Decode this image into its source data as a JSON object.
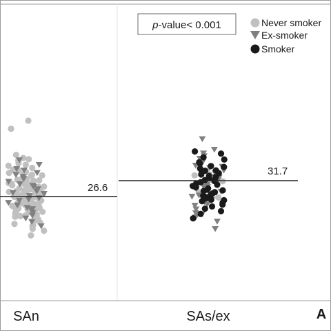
{
  "chart_data": {
    "type": "scatter",
    "annotation": "p-value< 0.001",
    "annotation_italic_part": "p",
    "annotation_rest": "-value< 0.001",
    "panel_label": "A",
    "categories": [
      "SAn",
      "SAs/ex"
    ],
    "medians": [
      {
        "category": "SAn",
        "value": 26.6,
        "label": "26.6"
      },
      {
        "category": "SAs/ex",
        "value": 31.7,
        "label": "31.7"
      }
    ],
    "y_range": [
      10,
      53
    ],
    "legend_placement": "top-right",
    "legend": [
      {
        "name": "Never smoker",
        "marker": "circle",
        "color": "#c0c0c0"
      },
      {
        "name": "Ex-smoker",
        "marker": "triangle-down",
        "color": "#808080"
      },
      {
        "name": "Smoker",
        "marker": "circle",
        "color": "#1a1a1a"
      }
    ],
    "colors": {
      "never": "#c0c0c0",
      "ex": "#808080",
      "smoker": "#1a1a1a",
      "frame": "#9a9a9a",
      "divider": "#e4e4e4",
      "median_line": "#222222"
    },
    "series": [
      {
        "name": "Never smoker",
        "category": "SAn",
        "values": [
          51.0,
          48.4,
          14.1,
          15.6,
          16.2,
          17.1,
          17.8,
          18.3,
          18.9,
          19.4,
          19.9,
          20.3,
          20.8,
          21.2,
          21.6,
          22.0,
          22.3,
          22.7,
          23.0,
          23.3,
          23.6,
          23.9,
          24.2,
          24.5,
          24.8,
          25.0,
          25.3,
          25.5,
          25.8,
          26.0,
          26.2,
          26.5,
          26.7,
          26.9,
          27.1,
          27.4,
          27.6,
          27.8,
          28.0,
          28.3,
          28.5,
          28.7,
          29.0,
          29.2,
          29.5,
          29.7,
          30.0,
          30.2,
          30.5,
          30.8,
          31.1,
          31.4,
          31.7,
          32.0,
          32.3,
          32.7,
          33.0,
          33.4,
          33.8,
          34.2,
          34.7,
          35.2,
          35.8,
          36.5,
          37.3,
          38.2,
          39.0,
          40.0,
          19.0,
          20.5,
          22.5,
          24.0,
          25.6,
          26.8,
          28.1,
          29.4,
          30.6,
          32.2,
          33.6,
          35.0,
          36.8,
          21.7,
          23.4,
          25.1,
          27.2,
          28.9,
          30.9,
          33.2,
          24.6,
          26.3,
          28.6,
          31.2,
          22.8,
          27.7,
          29.8,
          34.5,
          20.1,
          23.8,
          26.1,
          31.8,
          38.6,
          17.4
        ]
      },
      {
        "name": "Ex-smoker",
        "category": "SAn",
        "values": [
          38.4,
          36.9,
          35.6,
          34.3,
          33.1,
          32.4,
          31.5,
          30.7,
          29.9,
          29.1,
          28.4,
          27.6,
          26.9,
          26.2,
          25.4,
          24.7,
          23.9,
          23.1,
          22.3,
          21.5,
          20.6,
          19.7,
          18.6,
          17.2,
          30.2,
          27.9,
          25.8,
          33.7,
          22.7,
          35.1
        ]
      },
      {
        "name": "Smoker",
        "category": "SAn",
        "values": []
      },
      {
        "name": "Never smoker",
        "category": "SAs/ex",
        "values": [
          33.4,
          31.5,
          29.6,
          27.9,
          34.8,
          26.3
        ]
      },
      {
        "name": "Ex-smoker",
        "category": "SAs/ex",
        "values": [
          45.2,
          41.8,
          40.6,
          39.7,
          38.9,
          37.8,
          36.7,
          35.9,
          35.1,
          34.4,
          33.6,
          32.8,
          32.1,
          31.3,
          30.6,
          29.8,
          29.1,
          28.3,
          27.5,
          26.7,
          25.8,
          24.9,
          23.8,
          22.6,
          21.4,
          20.1,
          18.7,
          16.3,
          33.0,
          30.0,
          27.1,
          24.2,
          36.3,
          21.0
        ]
      },
      {
        "name": "Smoker",
        "category": "SAs/ex",
        "values": [
          41.1,
          40.4,
          39.2,
          38.5,
          37.6,
          37.2,
          36.4,
          36.1,
          35.6,
          35.0,
          34.6,
          34.1,
          33.7,
          33.2,
          32.9,
          32.5,
          32.0,
          31.6,
          31.2,
          30.8,
          30.4,
          30.0,
          29.6,
          29.2,
          28.8,
          28.4,
          28.0,
          27.6,
          27.2,
          26.8,
          26.4,
          26.0,
          25.6,
          25.1,
          24.6,
          24.0,
          23.4,
          22.7,
          21.9,
          21.0,
          19.6,
          34.9,
          31.9,
          28.6,
          25.4
        ]
      }
    ]
  }
}
